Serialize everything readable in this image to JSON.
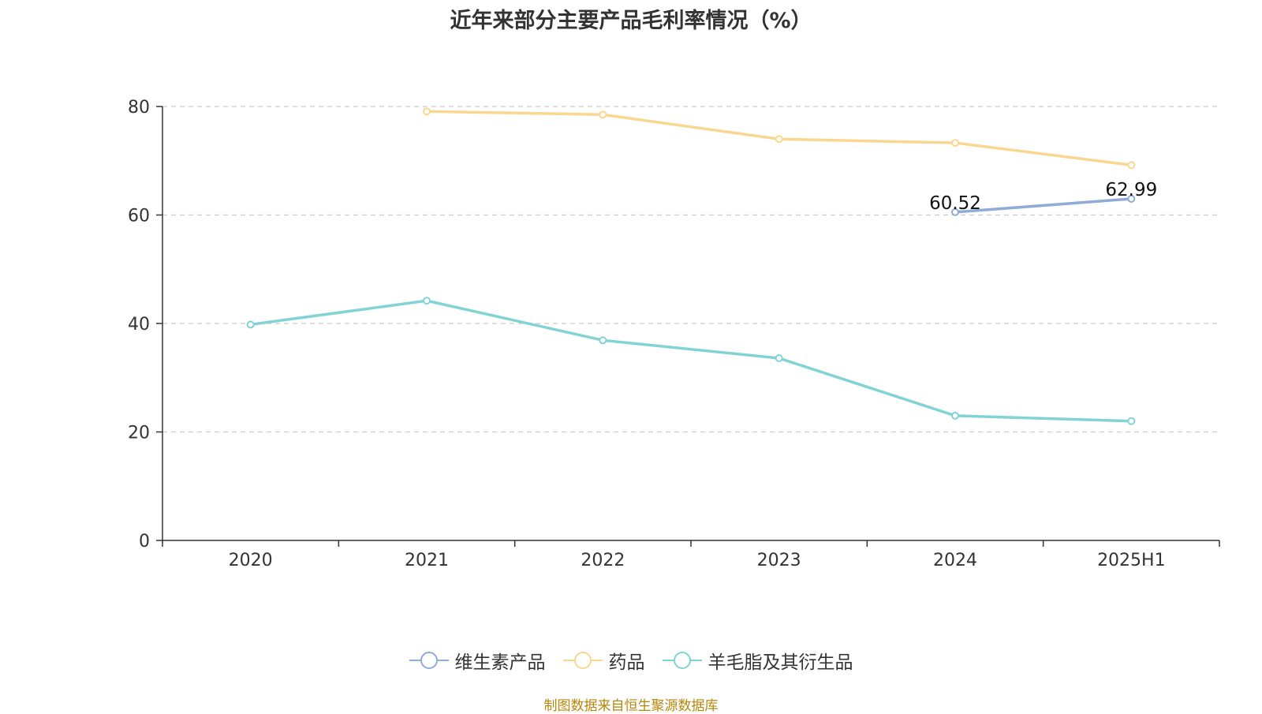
{
  "title": "近年来部分主要产品毛利率情况（%）",
  "source": "制图数据来自恒生聚源数据库",
  "chart_data": {
    "type": "line",
    "title": "近年来部分主要产品毛利率情况（%）",
    "categories": [
      "2020",
      "2021",
      "2022",
      "2023",
      "2024",
      "2025H1"
    ],
    "ylim": [
      0,
      80
    ],
    "yticks": [
      0,
      20,
      40,
      60,
      80
    ],
    "grid": "horizontal-dashed",
    "legend_position": "bottom",
    "series": [
      {
        "name": "维生素产品",
        "color": "#8fabd8",
        "values": [
          null,
          null,
          null,
          null,
          60.52,
          62.99
        ],
        "labels": [
          null,
          null,
          null,
          null,
          "60.52",
          "62.99"
        ]
      },
      {
        "name": "药品",
        "color": "#fad78f",
        "values": [
          null,
          79.1,
          78.5,
          74.0,
          73.3,
          69.2
        ],
        "labels": [
          null,
          null,
          null,
          null,
          null,
          null
        ]
      },
      {
        "name": "羊毛脂及其衍生品",
        "color": "#82d4d4",
        "values": [
          39.8,
          44.2,
          36.9,
          33.6,
          23.0,
          22.0
        ],
        "labels": [
          null,
          null,
          null,
          null,
          null,
          null
        ]
      }
    ]
  }
}
